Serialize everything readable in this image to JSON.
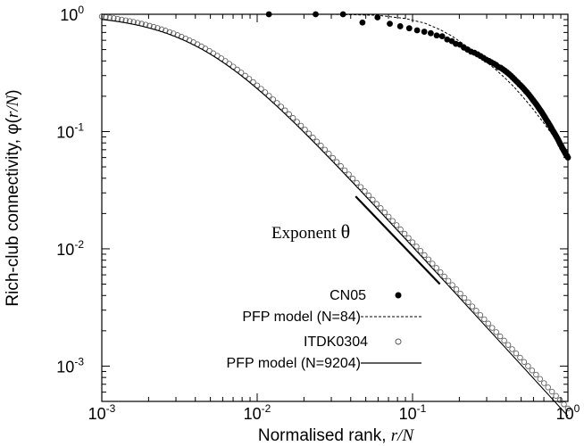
{
  "chart_data": {
    "type": "scatter",
    "title": "",
    "xlabel_prefix": "Normalised rank, ",
    "xlabel_var": "r/N",
    "ylabel_prefix": "Rich-club connectivity, φ(",
    "ylabel_var": "r/N",
    "ylabel_suffix": ")",
    "xscale": "log",
    "yscale": "log",
    "xlim": [
      0.001,
      1
    ],
    "ylim": [
      0.0005,
      1
    ],
    "x_ticks": [
      {
        "value": 0.001,
        "base": "10",
        "exp": "-3"
      },
      {
        "value": 0.01,
        "base": "10",
        "exp": "-2"
      },
      {
        "value": 0.1,
        "base": "10",
        "exp": "-1"
      },
      {
        "value": 1,
        "base": "10",
        "exp": "0"
      }
    ],
    "y_ticks": [
      {
        "value": 0.001,
        "base": "10",
        "exp": "-3"
      },
      {
        "value": 0.01,
        "base": "10",
        "exp": "-2"
      },
      {
        "value": 0.1,
        "base": "10",
        "exp": "-1"
      },
      {
        "value": 1,
        "base": "10",
        "exp": "0"
      }
    ],
    "legend_position": "bottom-center",
    "series": [
      {
        "name": "CN05",
        "marker": "filled-circle",
        "x": [
          0.0119,
          0.0238,
          0.0357,
          0.0476,
          0.0595,
          0.0714,
          0.0833,
          0.0952,
          0.107,
          0.119,
          0.131,
          0.143,
          0.155,
          0.167,
          0.179,
          0.19,
          0.202,
          0.214,
          0.226,
          0.238,
          0.25,
          0.262,
          0.274,
          0.286,
          0.298,
          0.31,
          0.321,
          0.333,
          0.345,
          0.357,
          0.369,
          0.381,
          0.393,
          0.405,
          0.417,
          0.429,
          0.44,
          0.452,
          0.464,
          0.476,
          0.488,
          0.5,
          0.512,
          0.524,
          0.536,
          0.548,
          0.56,
          0.571,
          0.583,
          0.595,
          0.607,
          0.619,
          0.631,
          0.643,
          0.655,
          0.667,
          0.679,
          0.69,
          0.702,
          0.714,
          0.726,
          0.738,
          0.75,
          0.762,
          0.774,
          0.786,
          0.798,
          0.81,
          0.821,
          0.833,
          0.845,
          0.857,
          0.869,
          0.881,
          0.893,
          0.905,
          0.917,
          0.929,
          0.94,
          0.952,
          0.964,
          0.976,
          0.988,
          1.0
        ],
        "y": [
          1.0,
          1.0,
          1.0,
          0.85,
          0.94,
          0.83,
          0.79,
          0.76,
          0.73,
          0.71,
          0.69,
          0.66,
          0.65,
          0.61,
          0.59,
          0.56,
          0.55,
          0.52,
          0.5,
          0.48,
          0.47,
          0.455,
          0.44,
          0.425,
          0.41,
          0.4,
          0.39,
          0.38,
          0.37,
          0.355,
          0.35,
          0.34,
          0.33,
          0.32,
          0.31,
          0.3,
          0.29,
          0.28,
          0.27,
          0.262,
          0.252,
          0.245,
          0.237,
          0.229,
          0.221,
          0.214,
          0.207,
          0.2,
          0.193,
          0.186,
          0.18,
          0.174,
          0.168,
          0.162,
          0.156,
          0.151,
          0.146,
          0.141,
          0.136,
          0.131,
          0.126,
          0.122,
          0.118,
          0.114,
          0.11,
          0.106,
          0.102,
          0.099,
          0.096,
          0.093,
          0.09,
          0.087,
          0.084,
          0.081,
          0.078,
          0.076,
          0.073,
          0.071,
          0.069,
          0.067,
          0.065,
          0.063,
          0.062,
          0.06
        ]
      },
      {
        "name": "PFP model (N=84)",
        "marker": "dashed-line",
        "x": [
          0.0119,
          0.03,
          0.06,
          0.09,
          0.12,
          0.15,
          0.18,
          0.22,
          0.26,
          0.3,
          0.35,
          0.4,
          0.45,
          0.5,
          0.55,
          0.6,
          0.65,
          0.7,
          0.75,
          0.8,
          0.85,
          0.9,
          0.95,
          1.0
        ],
        "y": [
          1.0,
          1.0,
          0.98,
          0.92,
          0.84,
          0.74,
          0.65,
          0.54,
          0.46,
          0.39,
          0.33,
          0.28,
          0.24,
          0.205,
          0.177,
          0.154,
          0.134,
          0.118,
          0.104,
          0.093,
          0.083,
          0.075,
          0.068,
          0.062
        ]
      },
      {
        "name": "ITDK0304",
        "marker": "open-circle",
        "model": "phi(x) = 1 / (1 + (x/0.0045)^1.5)^0.97 + 0.00005 / x, sampled log-uniformly on [0.001, 1]"
      },
      {
        "name": "PFP model (N=9204)",
        "marker": "solid-line",
        "model": "phi(x) = 1 / (1 + (x/0.0043)^1.5)^0.965, on [0.001, 1]"
      }
    ],
    "annotations": [
      {
        "label_prefix": "Exponent ",
        "label_symbol": "θ",
        "line_from": [
          0.043,
          0.028
        ],
        "line_to": [
          0.15,
          0.005
        ]
      }
    ]
  }
}
